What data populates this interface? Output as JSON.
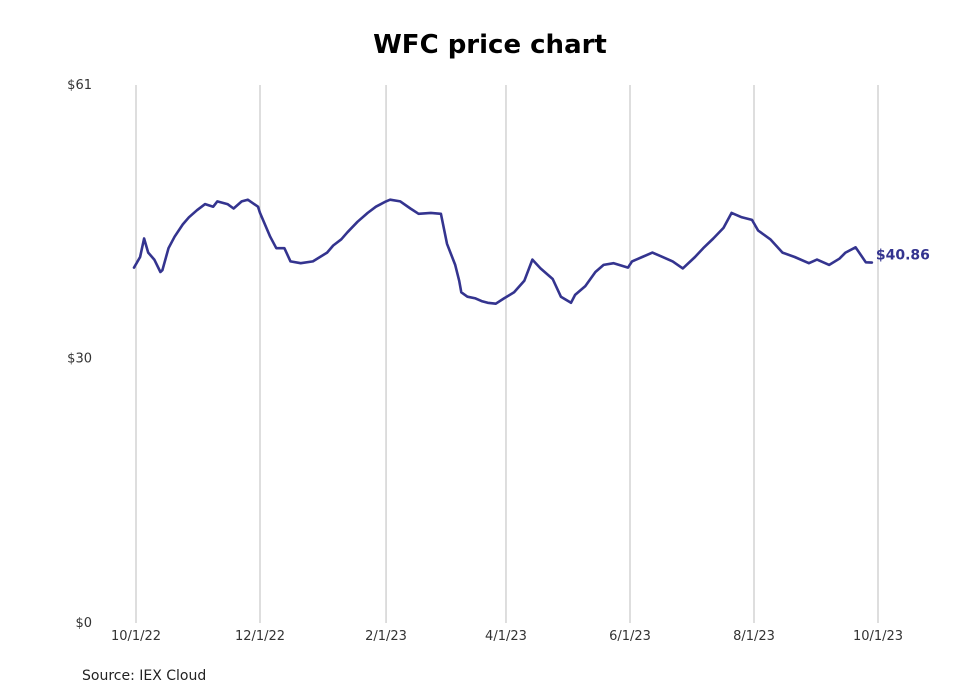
{
  "chart_data": {
    "type": "line",
    "title": "WFC price chart",
    "xlabel": "",
    "ylabel": "",
    "x_ticks": [
      "10/1/22",
      "12/1/22",
      "2/1/23",
      "4/1/23",
      "6/1/23",
      "8/1/23",
      "10/1/23"
    ],
    "y_ticks": [
      "$0",
      "$30",
      "$61"
    ],
    "ylim": [
      0,
      61
    ],
    "xlim": [
      "2022-10-01",
      "2023-10-01"
    ],
    "grid": "vertical",
    "line_color": "#34348f",
    "end_label": "$40.86",
    "series": [
      {
        "name": "",
        "x": [
          "2022-09-30",
          "2022-10-03",
          "2022-10-05",
          "2022-10-07",
          "2022-10-10",
          "2022-10-13",
          "2022-10-14",
          "2022-10-17",
          "2022-10-20",
          "2022-10-24",
          "2022-10-27",
          "2022-10-31",
          "2022-11-04",
          "2022-11-08",
          "2022-11-10",
          "2022-11-15",
          "2022-11-18",
          "2022-11-22",
          "2022-11-25",
          "2022-11-30",
          "2022-12-01",
          "2022-12-06",
          "2022-12-09",
          "2022-12-13",
          "2022-12-16",
          "2022-12-21",
          "2022-12-27",
          "2023-01-03",
          "2023-01-06",
          "2023-01-10",
          "2023-01-13",
          "2023-01-18",
          "2023-01-23",
          "2023-01-27",
          "2023-02-01",
          "2023-02-03",
          "2023-02-08",
          "2023-02-13",
          "2023-02-17",
          "2023-02-23",
          "2023-02-28",
          "2023-03-03",
          "2023-03-07",
          "2023-03-09",
          "2023-03-10",
          "2023-03-13",
          "2023-03-17",
          "2023-03-20",
          "2023-03-23",
          "2023-03-27",
          "2023-03-31",
          "2023-04-05",
          "2023-04-10",
          "2023-04-14",
          "2023-04-18",
          "2023-04-24",
          "2023-04-28",
          "2023-05-03",
          "2023-05-05",
          "2023-05-10",
          "2023-05-15",
          "2023-05-19",
          "2023-05-24",
          "2023-05-31",
          "2023-06-02",
          "2023-06-07",
          "2023-06-12",
          "2023-06-16",
          "2023-06-22",
          "2023-06-27",
          "2023-07-03",
          "2023-07-07",
          "2023-07-12",
          "2023-07-17",
          "2023-07-21",
          "2023-07-26",
          "2023-07-31",
          "2023-08-03",
          "2023-08-09",
          "2023-08-15",
          "2023-08-21",
          "2023-08-28",
          "2023-09-01",
          "2023-09-07",
          "2023-09-12",
          "2023-09-15",
          "2023-09-20",
          "2023-09-25",
          "2023-09-28"
        ],
        "y": [
          40.3,
          41.5,
          43.6,
          42.0,
          41.2,
          39.8,
          40.0,
          42.5,
          43.8,
          45.2,
          46.0,
          46.8,
          47.5,
          47.2,
          47.8,
          47.5,
          47.0,
          47.8,
          48.0,
          47.2,
          46.5,
          43.8,
          42.5,
          42.5,
          41.0,
          40.8,
          41.0,
          42.0,
          42.8,
          43.5,
          44.3,
          45.5,
          46.5,
          47.2,
          47.8,
          48.0,
          47.8,
          47.0,
          46.4,
          46.5,
          46.4,
          43.0,
          40.6,
          38.8,
          37.5,
          37.0,
          36.8,
          36.5,
          36.3,
          36.2,
          36.8,
          37.5,
          38.8,
          41.2,
          40.2,
          39.0,
          37.0,
          36.3,
          37.2,
          38.2,
          39.8,
          40.6,
          40.8,
          40.3,
          41.0,
          41.5,
          42.0,
          41.6,
          41.0,
          40.2,
          41.5,
          42.5,
          43.6,
          44.8,
          46.5,
          46.0,
          45.7,
          44.5,
          43.5,
          42.0,
          41.5,
          40.8,
          41.2,
          40.6,
          41.3,
          42.0,
          42.6,
          40.9,
          40.86
        ]
      }
    ]
  },
  "source_note": "Source: IEX Cloud"
}
